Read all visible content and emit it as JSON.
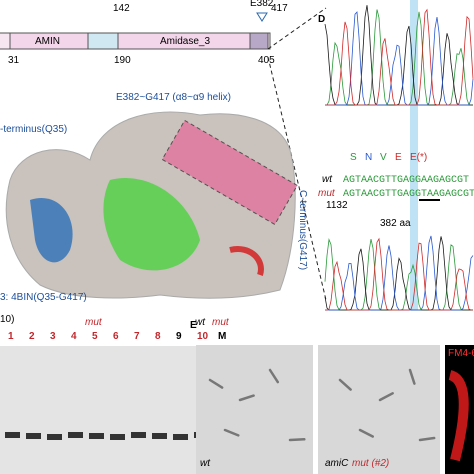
{
  "panel_a": {
    "domains": [
      "AMIN",
      "Amidase_3"
    ],
    "positions": [
      "31",
      "142",
      "190",
      "405",
      "417"
    ],
    "site": "E382"
  },
  "panel_d": {
    "label": "D",
    "protein": [
      "S",
      "N",
      "V",
      "E",
      "E(*)"
    ],
    "rows": [
      {
        "name": "wt",
        "sequence": "AGTAACGTTGAGGAAGAGCGT"
      },
      {
        "name": "mut",
        "sequence": "AGTAACGTTGAGGTAAGAGCGT"
      }
    ],
    "position": "1132",
    "residue": "382 aa"
  },
  "panel_b": {
    "helix": "E382~G417 (α8~α9 helix)",
    "n_terminus": "-terminus(Q35)",
    "c_terminus": "C-terminus(G417)",
    "caption": "3: 4BIN(Q35-G417)"
  },
  "panel_c": {
    "heading": "10)",
    "groups": [
      "mut",
      "wt",
      "mut"
    ],
    "lanes": [
      "1",
      "2",
      "3",
      "4",
      "5",
      "6",
      "7",
      "8",
      "9",
      "10",
      "M"
    ]
  },
  "panel_e": {
    "label": "E",
    "images": [
      "wt",
      "amiC",
      "mut (#2)",
      "FM4-6"
    ]
  }
}
